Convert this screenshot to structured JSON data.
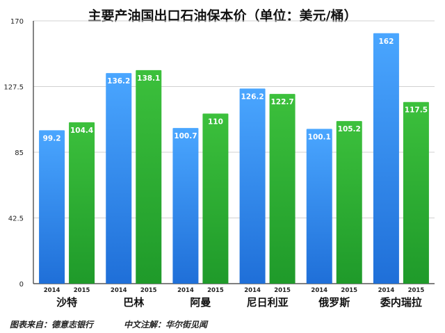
{
  "title": "主要产油国出口石油保本价（单位：美元/桶）",
  "footer": {
    "source": "图表来自：德意志银行",
    "translation": "中文注解：华尔街见闻"
  },
  "colors": {
    "series_2014": "#2a86e8",
    "series_2015": "#28a828",
    "axis": "#333333",
    "grid": "#d0d0d0"
  },
  "chart_data": {
    "type": "bar",
    "title": "主要产油国出口石油保本价（单位：美元/桶）",
    "categories": [
      "沙特",
      "巴林",
      "阿曼",
      "尼日利亚",
      "俄罗斯",
      "委内瑞拉"
    ],
    "series": [
      {
        "name": "2014",
        "values": [
          99.2,
          136.2,
          100.7,
          126.2,
          100.1,
          162
        ]
      },
      {
        "name": "2015",
        "values": [
          104.4,
          138.1,
          110,
          122.7,
          105.2,
          117.5
        ]
      }
    ],
    "ylim": [
      0,
      170
    ],
    "yticks": [
      "0",
      "42.5",
      "85",
      "127.5",
      "170"
    ],
    "grid": true,
    "legend": "none"
  }
}
